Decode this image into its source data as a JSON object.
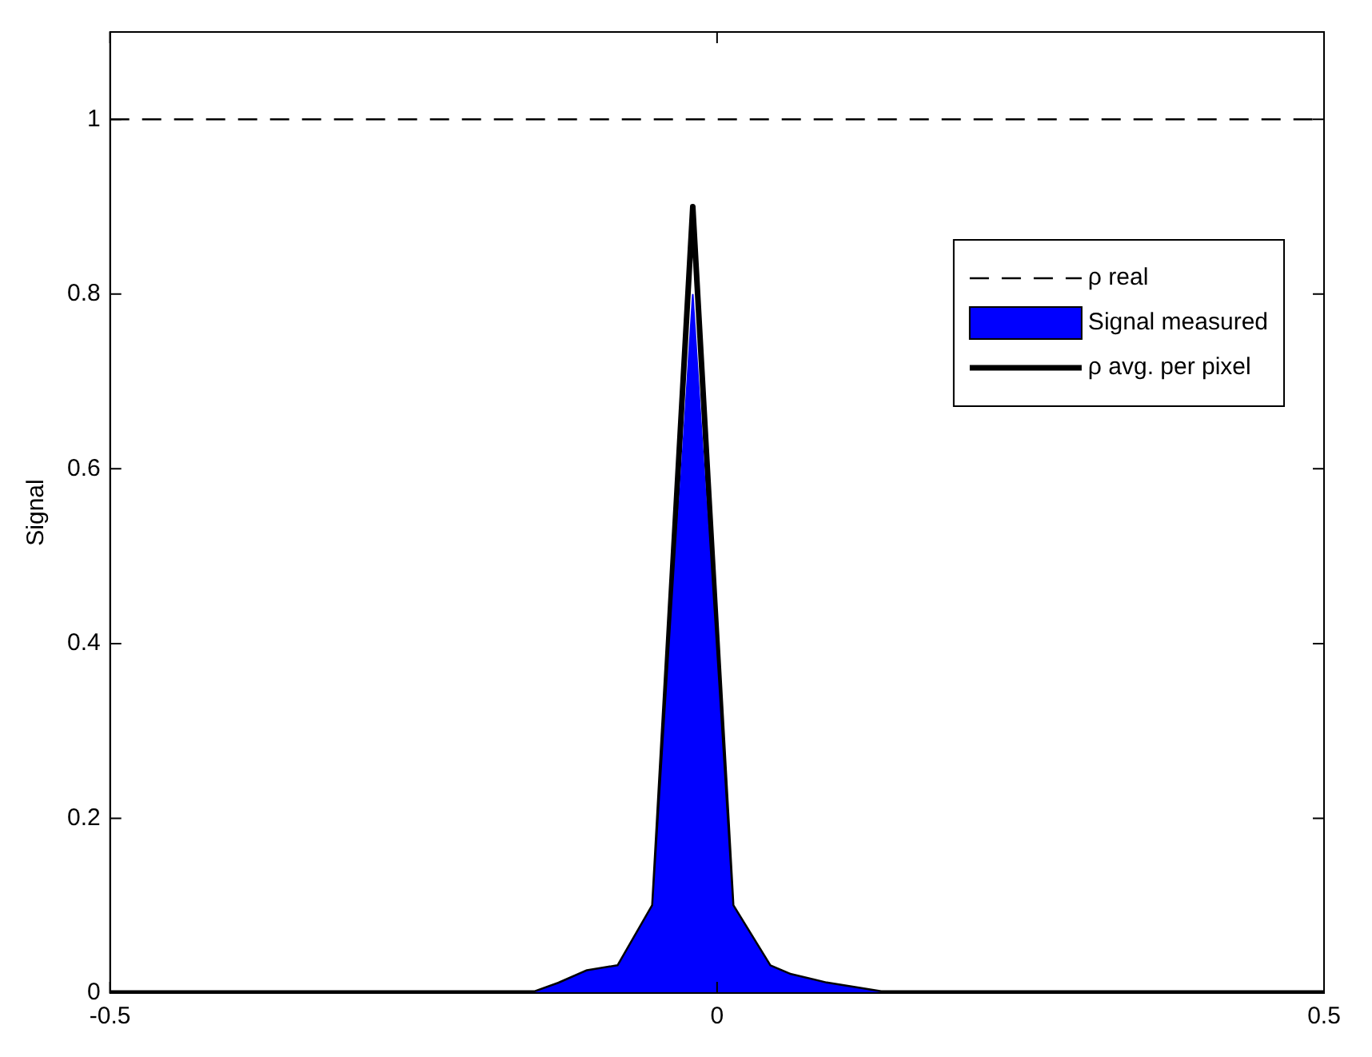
{
  "chart_data": {
    "type": "area",
    "ylabel": "Signal",
    "xlim": [
      -0.5,
      0.5
    ],
    "xticks": [
      -0.5,
      0,
      0.5
    ],
    "ylim": [
      0,
      1.1
    ],
    "yticks": [
      0,
      0.2,
      0.4,
      0.6,
      0.8,
      1
    ],
    "grid": false,
    "legend": "top right",
    "ref_lines": [
      {
        "axis": "y",
        "value": 1,
        "label": "ρ real",
        "color": "#000000",
        "line_style": "dashed"
      }
    ],
    "series": [
      {
        "name": "Signal measured",
        "color": "#0000ff",
        "x": [
          -0.5,
          -0.15,
          -0.13,
          -0.107,
          -0.081,
          -0.052,
          -0.02,
          0.012,
          0.043,
          0.06,
          0.09,
          0.135,
          0.5
        ],
        "values": [
          0,
          0,
          0.01,
          0.024,
          0.03,
          0.1,
          0.8,
          0.1,
          0.03,
          0.02,
          0.01,
          0,
          0
        ]
      },
      {
        "name": "ρ avg. per pixel",
        "type": "line",
        "color": "#000000",
        "x": [
          -0.5,
          -0.15,
          -0.13,
          -0.107,
          -0.081,
          -0.052,
          -0.02,
          0.012,
          0.043,
          0.06,
          0.09,
          0.135,
          0.5
        ],
        "values": [
          0,
          0,
          0.01,
          0.024,
          0.03,
          0.1,
          0.9,
          0.1,
          0.03,
          0.02,
          0.01,
          0,
          0
        ]
      }
    ]
  }
}
